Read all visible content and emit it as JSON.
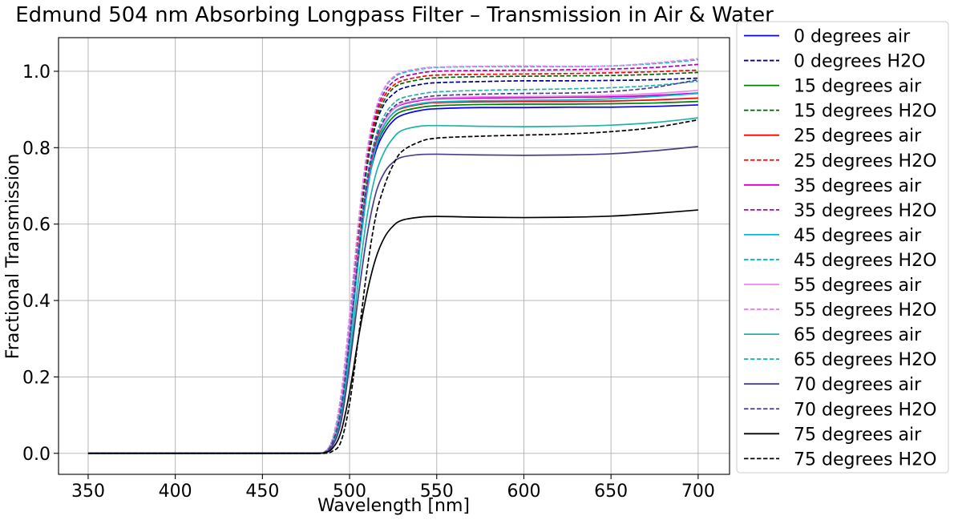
{
  "chart_data": {
    "type": "line",
    "title": "Edmund 504 nm Absorbing Longpass Filter – Transmission in Air & Water",
    "xlabel": "Wavelength [nm]",
    "ylabel": "Fractional Transmission",
    "xlim": [
      333,
      718
    ],
    "ylim": [
      -0.055,
      1.088
    ],
    "x_ticks": [
      350,
      400,
      450,
      500,
      550,
      600,
      650,
      700
    ],
    "x_tick_labels": [
      "350",
      "400",
      "450",
      "500",
      "550",
      "600",
      "650",
      "700"
    ],
    "y_ticks": [
      0.0,
      0.2,
      0.4,
      0.6,
      0.8,
      1.0
    ],
    "y_tick_labels": [
      "0.0",
      "0.2",
      "0.4",
      "0.6",
      "0.8",
      "1.0"
    ],
    "grid": true,
    "legend_position": "outside-right",
    "x": [
      350,
      470,
      480,
      485,
      490,
      495,
      500,
      505,
      510,
      515,
      520,
      525,
      530,
      540,
      550,
      575,
      600,
      625,
      650,
      675,
      700
    ],
    "series": [
      {
        "name": "0 degrees air",
        "color": "#0000ff",
        "dash": "solid",
        "values": [
          0,
          0,
          0,
          0.001,
          0.03,
          0.12,
          0.3,
          0.52,
          0.69,
          0.79,
          0.84,
          0.87,
          0.885,
          0.897,
          0.902,
          0.905,
          0.905,
          0.906,
          0.906,
          0.908,
          0.912
        ]
      },
      {
        "name": "0 degrees H2O",
        "color": "#00008b",
        "dash": "dashed",
        "values": [
          0,
          0,
          0,
          0.001,
          0.034,
          0.14,
          0.33,
          0.56,
          0.75,
          0.86,
          0.915,
          0.94,
          0.955,
          0.965,
          0.97,
          0.973,
          0.975,
          0.975,
          0.976,
          0.978,
          0.982
        ]
      },
      {
        "name": "15 degrees air",
        "color": "#008000",
        "dash": "solid",
        "values": [
          0,
          0,
          0,
          0.001,
          0.03,
          0.12,
          0.31,
          0.53,
          0.7,
          0.8,
          0.85,
          0.88,
          0.895,
          0.905,
          0.91,
          0.913,
          0.914,
          0.914,
          0.915,
          0.917,
          0.921
        ]
      },
      {
        "name": "15 degrees H2O",
        "color": "#006400",
        "dash": "dashed",
        "values": [
          0,
          0,
          0,
          0.001,
          0.034,
          0.14,
          0.34,
          0.57,
          0.76,
          0.87,
          0.925,
          0.955,
          0.968,
          0.978,
          0.983,
          0.986,
          0.987,
          0.988,
          0.989,
          0.992,
          0.997
        ]
      },
      {
        "name": "25 degrees air",
        "color": "#ff0000",
        "dash": "solid",
        "values": [
          0,
          0,
          0,
          0.001,
          0.03,
          0.12,
          0.31,
          0.53,
          0.7,
          0.81,
          0.86,
          0.89,
          0.903,
          0.913,
          0.918,
          0.92,
          0.921,
          0.921,
          0.922,
          0.925,
          0.93
        ]
      },
      {
        "name": "25 degrees H2O",
        "color": "#ff0000",
        "dash": "dashed",
        "values": [
          0,
          0,
          0,
          0.001,
          0.034,
          0.14,
          0.34,
          0.58,
          0.77,
          0.88,
          0.935,
          0.962,
          0.975,
          0.985,
          0.99,
          0.992,
          0.993,
          0.994,
          0.996,
          0.999,
          1.003
        ]
      },
      {
        "name": "35 degrees air",
        "color": "#cc00cc",
        "dash": "solid",
        "values": [
          0,
          0,
          0,
          0.001,
          0.03,
          0.12,
          0.32,
          0.54,
          0.71,
          0.82,
          0.87,
          0.9,
          0.913,
          0.923,
          0.928,
          0.93,
          0.931,
          0.932,
          0.933,
          0.937,
          0.943
        ]
      },
      {
        "name": "35 degrees H2O",
        "color": "#b000b0",
        "dash": "dashed",
        "values": [
          0,
          0,
          0,
          0.001,
          0.034,
          0.14,
          0.35,
          0.59,
          0.78,
          0.89,
          0.945,
          0.972,
          0.985,
          0.995,
          1.0,
          1.002,
          1.003,
          1.004,
          1.006,
          1.01,
          1.018
        ]
      },
      {
        "name": "45 degrees air",
        "color": "#00bcd4",
        "dash": "solid",
        "values": [
          0,
          0,
          0,
          0.001,
          0.025,
          0.1,
          0.28,
          0.5,
          0.68,
          0.8,
          0.86,
          0.89,
          0.905,
          0.915,
          0.92,
          0.923,
          0.924,
          0.925,
          0.928,
          0.934,
          0.942
        ]
      },
      {
        "name": "45 degrees H2O",
        "color": "#00bcd4",
        "dash": "dashed",
        "values": [
          0,
          0,
          0,
          0.001,
          0.035,
          0.15,
          0.36,
          0.6,
          0.79,
          0.9,
          0.955,
          0.982,
          0.995,
          1.005,
          1.01,
          1.012,
          1.012,
          1.012,
          1.014,
          1.02,
          1.03
        ]
      },
      {
        "name": "55 degrees air",
        "color": "#ee82ee",
        "dash": "solid",
        "values": [
          0,
          0,
          0,
          0.001,
          0.03,
          0.12,
          0.32,
          0.54,
          0.71,
          0.82,
          0.87,
          0.9,
          0.915,
          0.925,
          0.93,
          0.933,
          0.934,
          0.935,
          0.937,
          0.942,
          0.95
        ]
      },
      {
        "name": "55 degrees H2O",
        "color": "#ee82ee",
        "dash": "dashed",
        "values": [
          0,
          0,
          0,
          0.001,
          0.035,
          0.15,
          0.36,
          0.6,
          0.79,
          0.9,
          0.957,
          0.985,
          0.998,
          1.007,
          1.011,
          1.013,
          1.014,
          1.013,
          1.014,
          1.022,
          1.033
        ]
      },
      {
        "name": "65 degrees air",
        "color": "#20b2aa",
        "dash": "solid",
        "values": [
          0,
          0,
          0,
          0.001,
          0.022,
          0.09,
          0.25,
          0.45,
          0.62,
          0.73,
          0.79,
          0.825,
          0.845,
          0.856,
          0.858,
          0.856,
          0.855,
          0.856,
          0.859,
          0.866,
          0.878
        ]
      },
      {
        "name": "65 degrees H2O",
        "color": "#20b2aa",
        "dash": "dashed",
        "values": [
          0,
          0,
          0,
          0.001,
          0.028,
          0.12,
          0.31,
          0.53,
          0.72,
          0.83,
          0.885,
          0.915,
          0.93,
          0.94,
          0.946,
          0.95,
          0.952,
          0.954,
          0.957,
          0.963,
          0.974
        ]
      },
      {
        "name": "70 degrees air",
        "color": "#483d8b",
        "dash": "solid",
        "values": [
          0,
          0,
          0,
          0.001,
          0.018,
          0.08,
          0.23,
          0.41,
          0.57,
          0.68,
          0.735,
          0.762,
          0.775,
          0.782,
          0.783,
          0.781,
          0.78,
          0.781,
          0.784,
          0.792,
          0.803
        ]
      },
      {
        "name": "70 degrees H2O",
        "color": "#483d8b",
        "dash": "dashed",
        "values": [
          0,
          0,
          0,
          0.001,
          0.026,
          0.11,
          0.3,
          0.52,
          0.71,
          0.82,
          0.875,
          0.905,
          0.92,
          0.93,
          0.936,
          0.94,
          0.942,
          0.943,
          0.947,
          0.958,
          0.978
        ]
      },
      {
        "name": "75 degrees air",
        "color": "#000000",
        "dash": "solid",
        "values": [
          0,
          0,
          0,
          0.001,
          0.012,
          0.055,
          0.16,
          0.3,
          0.42,
          0.51,
          0.565,
          0.595,
          0.61,
          0.618,
          0.62,
          0.618,
          0.617,
          0.618,
          0.621,
          0.628,
          0.637
        ]
      },
      {
        "name": "75 degrees H2O",
        "color": "#000000",
        "dash": "dashed",
        "values": [
          0,
          0,
          0,
          0.0,
          0.005,
          0.03,
          0.13,
          0.3,
          0.48,
          0.62,
          0.7,
          0.755,
          0.79,
          0.815,
          0.825,
          0.83,
          0.833,
          0.836,
          0.842,
          0.853,
          0.873
        ]
      }
    ]
  }
}
